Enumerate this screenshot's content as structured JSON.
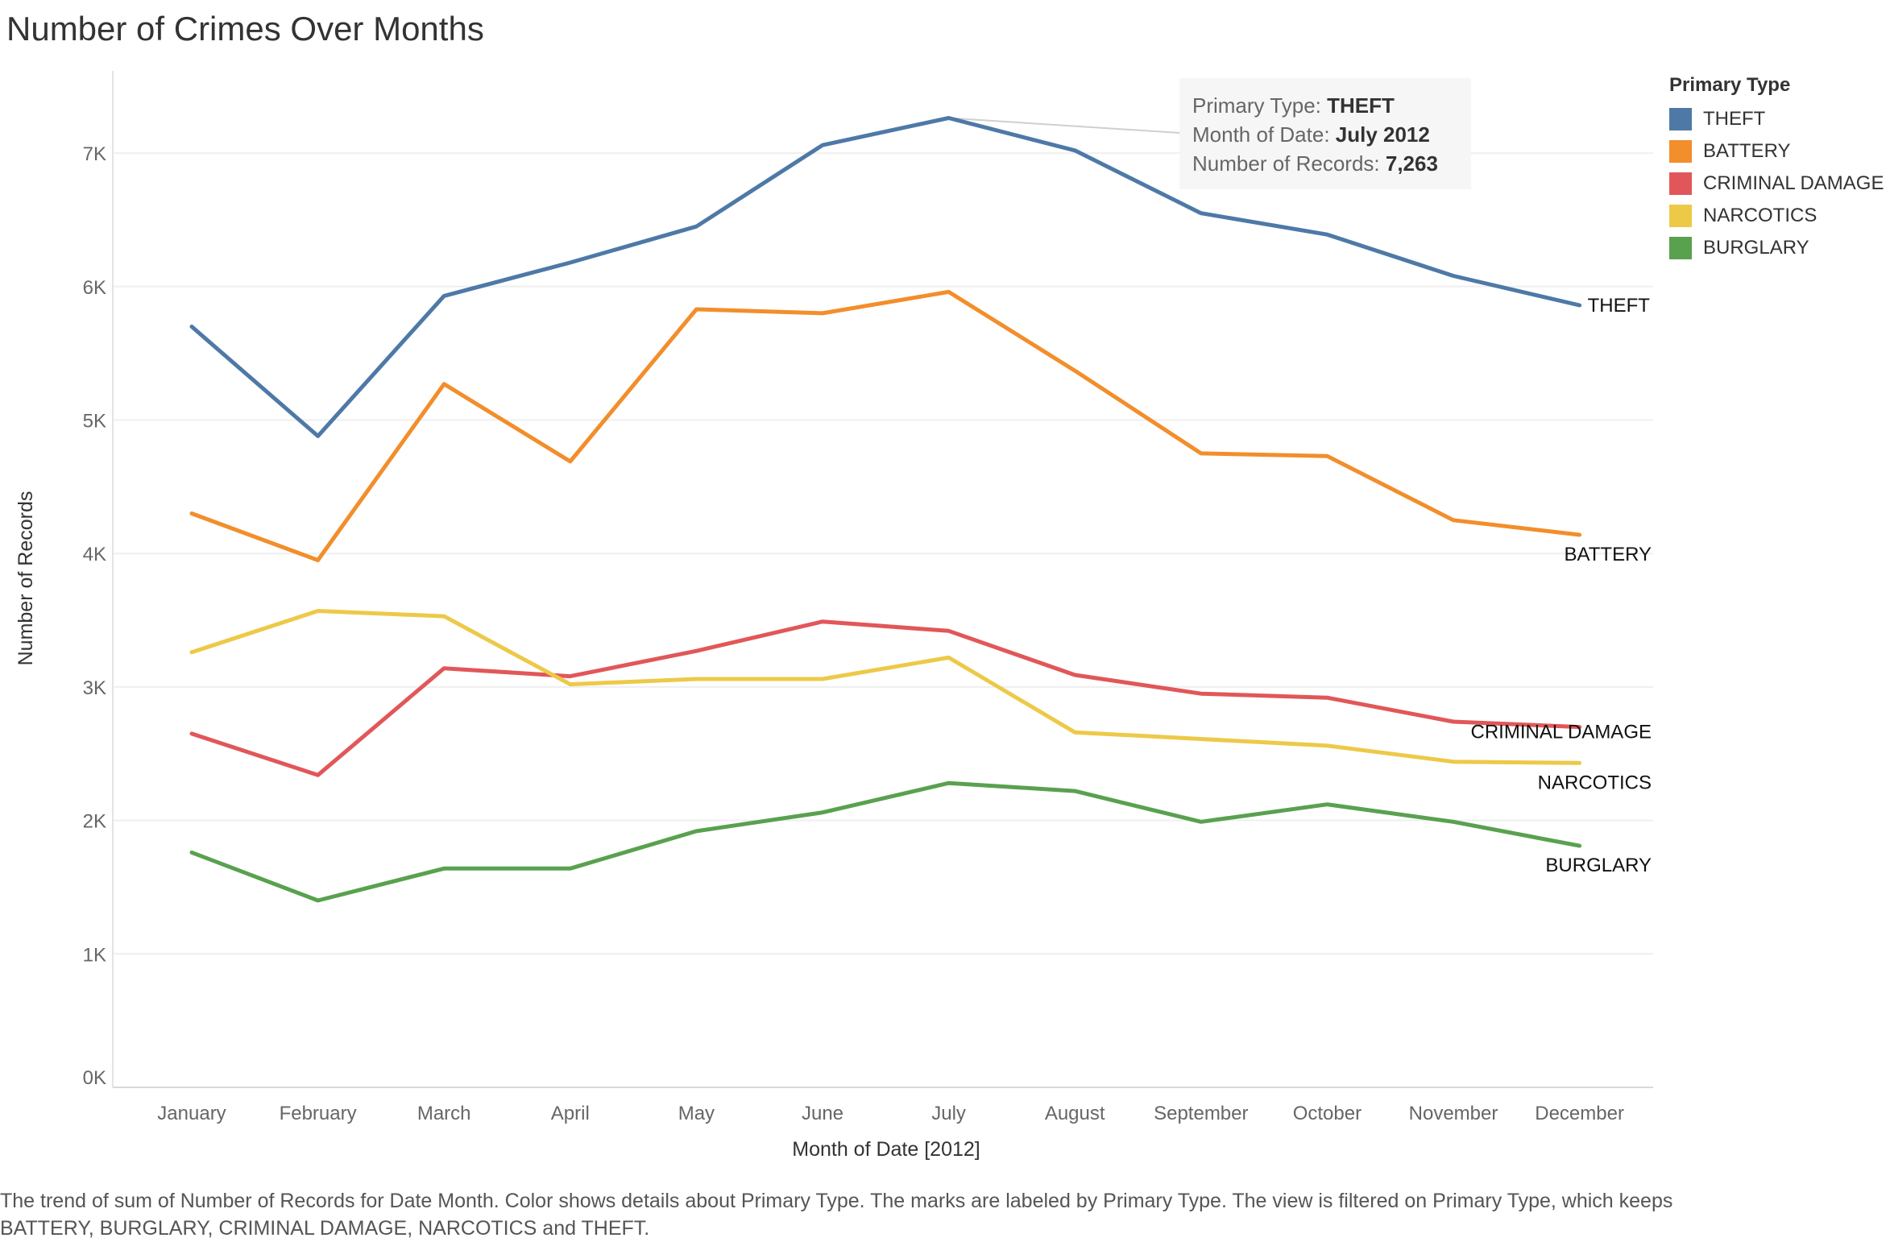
{
  "title": "Number of Crimes Over Months",
  "caption": "The trend of sum of Number of Records for Date Month.  Color shows details about Primary Type.  The marks are labeled by Primary Type. The view is filtered on Primary Type, which keeps BATTERY, BURGLARY, CRIMINAL DAMAGE, NARCOTICS and THEFT.",
  "legend": {
    "title": "Primary Type",
    "items": [
      {
        "label": "THEFT",
        "color": "#4e79a7"
      },
      {
        "label": "BATTERY",
        "color": "#f28e2b"
      },
      {
        "label": "CRIMINAL DAMAGE",
        "color": "#e15759"
      },
      {
        "label": "NARCOTICS",
        "color": "#edc948"
      },
      {
        "label": "BURGLARY",
        "color": "#59a14f"
      }
    ]
  },
  "tooltip": {
    "type_label": "Primary Type: ",
    "type_value": "THEFT",
    "month_label": "Month of Date: ",
    "month_value": "July 2012",
    "records_label": "Number of Records: ",
    "records_value": "7,263"
  },
  "chart_data": {
    "type": "line",
    "title": "Number of Crimes Over Months",
    "xlabel": "Month of Date [2012]",
    "ylabel": "Number of Records",
    "categories": [
      "January",
      "February",
      "March",
      "April",
      "May",
      "June",
      "July",
      "August",
      "September",
      "October",
      "November",
      "December"
    ],
    "yticks": [
      "0K",
      "1K",
      "2K",
      "3K",
      "4K",
      "5K",
      "6K",
      "7K"
    ],
    "ylim": [
      0,
      7500
    ],
    "grid": true,
    "legend_position": "top-right",
    "series": [
      {
        "name": "THEFT",
        "color": "#4e79a7",
        "values": [
          5700,
          4880,
          5930,
          6180,
          6450,
          7060,
          7263,
          7020,
          6550,
          6390,
          6080,
          5860
        ]
      },
      {
        "name": "BATTERY",
        "color": "#f28e2b",
        "values": [
          4300,
          3950,
          5270,
          4690,
          5830,
          5800,
          5960,
          5370,
          4750,
          4730,
          4250,
          4140
        ]
      },
      {
        "name": "CRIMINAL DAMAGE",
        "color": "#e15759",
        "values": [
          2650,
          2340,
          3140,
          3080,
          3270,
          3490,
          3420,
          3090,
          2950,
          2920,
          2740,
          2700
        ]
      },
      {
        "name": "NARCOTICS",
        "color": "#edc948",
        "values": [
          3260,
          3570,
          3530,
          3020,
          3060,
          3060,
          3220,
          2660,
          2610,
          2560,
          2440,
          2430
        ]
      },
      {
        "name": "BURGLARY",
        "color": "#59a14f",
        "values": [
          1760,
          1400,
          1640,
          1640,
          1920,
          2060,
          2280,
          2220,
          1990,
          2120,
          1990,
          1810
        ]
      }
    ]
  }
}
